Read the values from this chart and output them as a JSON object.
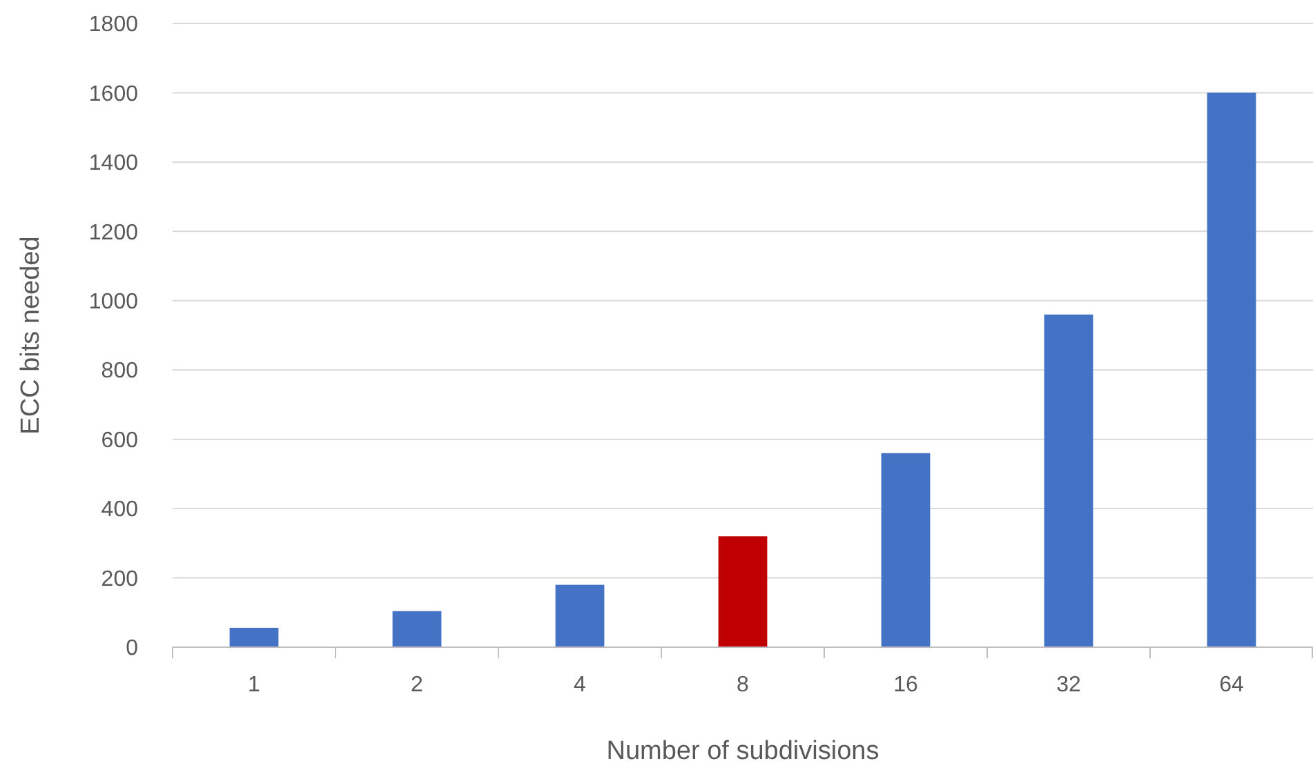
{
  "chart_data": {
    "type": "bar",
    "xlabel": "Number of subdivisions",
    "ylabel": "ECC bits needed",
    "categories": [
      "1",
      "2",
      "4",
      "8",
      "16",
      "32",
      "64"
    ],
    "values": [
      56,
      104,
      180,
      320,
      560,
      960,
      1600
    ],
    "colors": [
      "#4472c4",
      "#4472c4",
      "#4472c4",
      "#c00000",
      "#4472c4",
      "#4472c4",
      "#4472c4"
    ],
    "ylim": [
      0,
      1800
    ],
    "yticks": [
      0,
      200,
      400,
      600,
      800,
      1000,
      1200,
      1400,
      1600,
      1800
    ],
    "grid": "y"
  }
}
